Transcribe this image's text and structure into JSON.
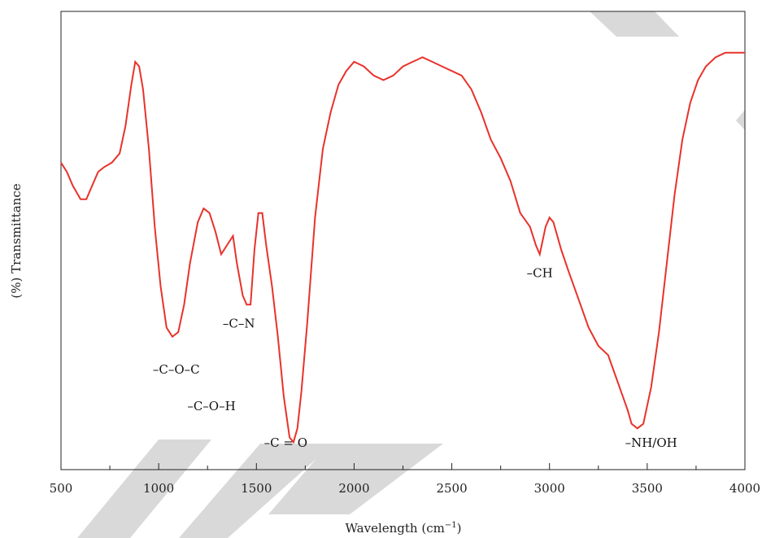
{
  "chart_data": {
    "type": "line",
    "title": "",
    "xlabel": "Wavelength (cm",
    "xlabel_sup": "−1",
    "xlabel_close": ")",
    "ylabel": "(%) Transmittance",
    "xlim": [
      500,
      4000
    ],
    "ylim": [
      0,
      100
    ],
    "grid": false,
    "x_ticks": [
      500,
      1000,
      1500,
      2000,
      2500,
      3000,
      3500,
      4000
    ],
    "x_tick_labels": [
      "500",
      "1000",
      "1500",
      "2000",
      "2500",
      "3000",
      "3500",
      "4000"
    ],
    "series": [
      {
        "color": "#e8322b",
        "points": [
          [
            500,
            67
          ],
          [
            530,
            65
          ],
          [
            560,
            62
          ],
          [
            600,
            59
          ],
          [
            630,
            59
          ],
          [
            660,
            62
          ],
          [
            690,
            65
          ],
          [
            720,
            66
          ],
          [
            760,
            67
          ],
          [
            800,
            69
          ],
          [
            830,
            75
          ],
          [
            860,
            84
          ],
          [
            880,
            89
          ],
          [
            900,
            88
          ],
          [
            920,
            83
          ],
          [
            950,
            70
          ],
          [
            980,
            53
          ],
          [
            1010,
            40
          ],
          [
            1040,
            31
          ],
          [
            1070,
            29
          ],
          [
            1100,
            30
          ],
          [
            1130,
            36
          ],
          [
            1160,
            45
          ],
          [
            1200,
            54
          ],
          [
            1230,
            57
          ],
          [
            1260,
            56
          ],
          [
            1290,
            52
          ],
          [
            1320,
            47
          ],
          [
            1350,
            49
          ],
          [
            1380,
            51
          ],
          [
            1400,
            45
          ],
          [
            1430,
            38
          ],
          [
            1450,
            36
          ],
          [
            1470,
            36
          ],
          [
            1490,
            48
          ],
          [
            1510,
            56
          ],
          [
            1530,
            56
          ],
          [
            1550,
            49
          ],
          [
            1580,
            40
          ],
          [
            1610,
            29
          ],
          [
            1640,
            16
          ],
          [
            1670,
            7
          ],
          [
            1690,
            6
          ],
          [
            1710,
            9
          ],
          [
            1730,
            17
          ],
          [
            1760,
            32
          ],
          [
            1800,
            55
          ],
          [
            1840,
            70
          ],
          [
            1880,
            78
          ],
          [
            1920,
            84
          ],
          [
            1960,
            87
          ],
          [
            2000,
            89
          ],
          [
            2050,
            88
          ],
          [
            2100,
            86
          ],
          [
            2150,
            85
          ],
          [
            2200,
            86
          ],
          [
            2250,
            88
          ],
          [
            2300,
            89
          ],
          [
            2350,
            90
          ],
          [
            2400,
            89
          ],
          [
            2450,
            88
          ],
          [
            2500,
            87
          ],
          [
            2550,
            86
          ],
          [
            2600,
            83
          ],
          [
            2650,
            78
          ],
          [
            2700,
            72
          ],
          [
            2750,
            68
          ],
          [
            2800,
            63
          ],
          [
            2850,
            56
          ],
          [
            2900,
            53
          ],
          [
            2930,
            49
          ],
          [
            2950,
            47
          ],
          [
            2980,
            53
          ],
          [
            3000,
            55
          ],
          [
            3020,
            54
          ],
          [
            3060,
            48
          ],
          [
            3100,
            43
          ],
          [
            3150,
            37
          ],
          [
            3200,
            31
          ],
          [
            3250,
            27
          ],
          [
            3300,
            25
          ],
          [
            3350,
            19
          ],
          [
            3400,
            13
          ],
          [
            3420,
            10
          ],
          [
            3450,
            9
          ],
          [
            3480,
            10
          ],
          [
            3520,
            18
          ],
          [
            3560,
            30
          ],
          [
            3600,
            45
          ],
          [
            3640,
            60
          ],
          [
            3680,
            72
          ],
          [
            3720,
            80
          ],
          [
            3760,
            85
          ],
          [
            3800,
            88
          ],
          [
            3850,
            90
          ],
          [
            3900,
            91
          ],
          [
            4000,
            91
          ]
        ]
      }
    ],
    "annotations": [
      {
        "text": "–C–O–C",
        "x": 1090,
        "y": 21
      },
      {
        "text": "–C–O–H",
        "x": 1270,
        "y": 13
      },
      {
        "text": "–C–N",
        "x": 1410,
        "y": 31
      },
      {
        "text": "–C = O",
        "x": 1650,
        "y": 5
      },
      {
        "text": "–CH",
        "x": 2950,
        "y": 42
      },
      {
        "text": "–NH/OH",
        "x": 3520,
        "y": 5
      }
    ]
  }
}
